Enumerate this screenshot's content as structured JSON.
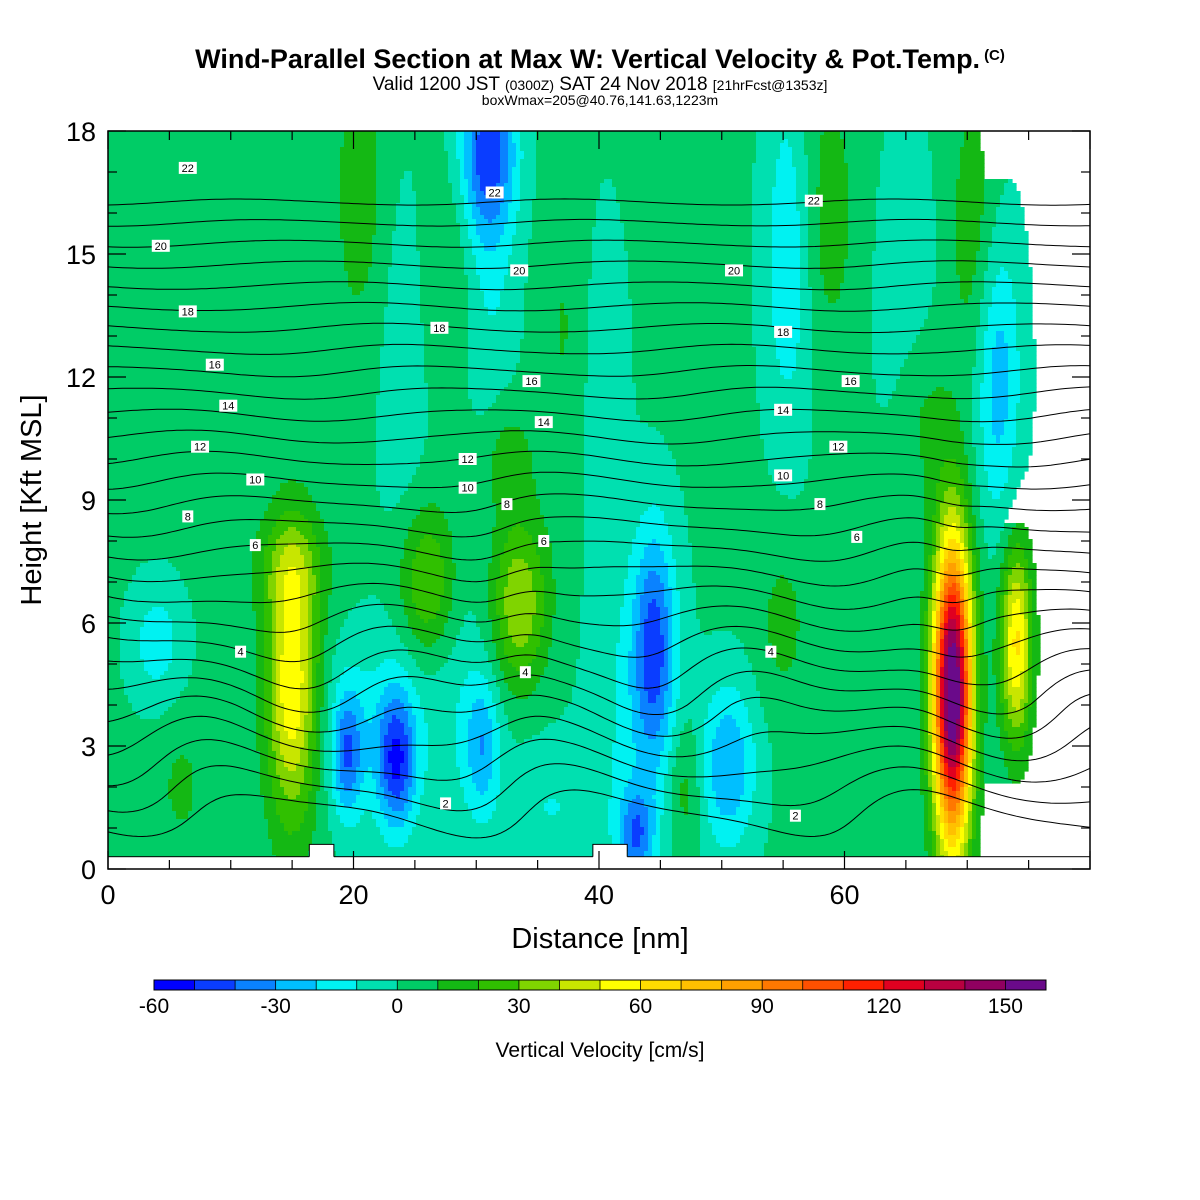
{
  "header": {
    "title": "Wind-Parallel Section at Max W: Vertical Velocity & Pot.Temp.",
    "copyright": "(C)",
    "valid_pre": "Valid 1200 JST",
    "valid_utc": "(0300Z)",
    "valid_date": "SAT 24 Nov 2018",
    "forecast": "[21hrFcst@1353z]",
    "boxwmax": "boxWmax=205@40.76,141.63,1223m"
  },
  "chart_data": {
    "type": "contour",
    "title": "Wind-Parallel Section at Max W: Vertical Velocity & Pot.Temp.",
    "xlabel": "Distance [nm]",
    "ylabel": "Height [Kft MSL]",
    "xlim": [
      0,
      80
    ],
    "ylim": [
      0,
      18
    ],
    "x_ticks": [
      0,
      20,
      40,
      60
    ],
    "y_ticks": [
      0,
      3,
      6,
      9,
      12,
      15,
      18
    ],
    "colorbar": {
      "label": "Vertical Velocity [cm/s]",
      "min": -60,
      "max": 170,
      "step": 10,
      "tick_values": [
        -60,
        -30,
        0,
        30,
        60,
        90,
        120,
        150
      ],
      "colors": [
        "#0000ff",
        "#0a3dff",
        "#0a82ff",
        "#00bfff",
        "#00f2f2",
        "#00e0b0",
        "#00cc66",
        "#14b814",
        "#30c000",
        "#80d400",
        "#c8e600",
        "#ffff00",
        "#ffdc00",
        "#ffc000",
        "#ffa000",
        "#ff7800",
        "#ff5000",
        "#ff2000",
        "#e00020",
        "#b80040",
        "#900060",
        "#6a0a8a"
      ]
    },
    "background_velocity": 2,
    "velocity_features": [
      {
        "x": 15,
        "y": 4.5,
        "sx": 1.5,
        "sy": 2.4,
        "w": 58
      },
      {
        "x": 15,
        "y": 7.4,
        "sx": 2.0,
        "sy": 0.9,
        "w": 20
      },
      {
        "x": 26,
        "y": 7.0,
        "sx": 1.6,
        "sy": 1.3,
        "w": 30
      },
      {
        "x": 33.5,
        "y": 6.5,
        "sx": 1.6,
        "sy": 1.4,
        "w": 38
      },
      {
        "x": 32.5,
        "y": 10.0,
        "sx": 1.5,
        "sy": 1.0,
        "w": 15
      },
      {
        "x": 68.8,
        "y": 4.3,
        "sx": 1.1,
        "sy": 2.6,
        "w": 165
      },
      {
        "x": 74,
        "y": 5.5,
        "sx": 0.9,
        "sy": 1.7,
        "w": 60
      },
      {
        "x": 66.5,
        "y": 11.0,
        "sx": 1.6,
        "sy": 1.5,
        "w": 12
      },
      {
        "x": 70.5,
        "y": 15.5,
        "sx": 1.4,
        "sy": 2.5,
        "w": 15
      },
      {
        "x": 20.5,
        "y": 16.5,
        "sx": 1.5,
        "sy": 2.5,
        "w": 14
      },
      {
        "x": 28,
        "y": 14.5,
        "sx": 1.5,
        "sy": 2.0,
        "w": 10
      },
      {
        "x": 37.5,
        "y": 13.0,
        "sx": 1.5,
        "sy": 3.0,
        "w": 10
      },
      {
        "x": 58.5,
        "y": 16.0,
        "sx": 1.8,
        "sy": 2.5,
        "w": 14
      },
      {
        "x": 47,
        "y": 2.0,
        "sx": 1.0,
        "sy": 1.2,
        "w": 16
      },
      {
        "x": 55,
        "y": 6.0,
        "sx": 1.4,
        "sy": 1.4,
        "w": 12
      },
      {
        "x": 6,
        "y": 2.0,
        "sx": 1.5,
        "sy": 1.2,
        "w": 10
      },
      {
        "x": 23.5,
        "y": 2.6,
        "sx": 1.1,
        "sy": 1.2,
        "w": -45
      },
      {
        "x": 19.5,
        "y": 2.8,
        "sx": 0.9,
        "sy": 1.1,
        "w": -35
      },
      {
        "x": 22,
        "y": 3.5,
        "sx": 3.5,
        "sy": 1.6,
        "w": -14
      },
      {
        "x": 44.5,
        "y": 5.5,
        "sx": 1.2,
        "sy": 2.0,
        "w": -40
      },
      {
        "x": 43,
        "y": 3.5,
        "sx": 2.5,
        "sy": 3.0,
        "w": -14
      },
      {
        "x": 50.5,
        "y": 2.5,
        "sx": 1.6,
        "sy": 1.4,
        "w": -32
      },
      {
        "x": 31,
        "y": 17.5,
        "sx": 1.6,
        "sy": 1.4,
        "w": -42
      },
      {
        "x": 31,
        "y": 15.0,
        "sx": 1.6,
        "sy": 3.0,
        "w": -14
      },
      {
        "x": 55.5,
        "y": 15.0,
        "sx": 1.4,
        "sy": 3.0,
        "w": -22
      },
      {
        "x": 72.5,
        "y": 12.0,
        "sx": 1.3,
        "sy": 2.5,
        "w": -28
      },
      {
        "x": 4,
        "y": 5.5,
        "sx": 1.5,
        "sy": 1.0,
        "w": -18
      },
      {
        "x": 30.5,
        "y": 3.0,
        "sx": 1.0,
        "sy": 1.2,
        "w": -26
      },
      {
        "x": 43,
        "y": 0.8,
        "sx": 1.0,
        "sy": 0.8,
        "w": -35
      },
      {
        "x": 36,
        "y": 1.5,
        "sx": 2.5,
        "sy": 1.2,
        "w": -12
      },
      {
        "x": 29,
        "y": 4.0,
        "sx": 2.0,
        "sy": 2.5,
        "w": -8
      },
      {
        "x": 40,
        "y": 12.0,
        "sx": 1.5,
        "sy": 3.0,
        "w": -10
      },
      {
        "x": 24,
        "y": 12.0,
        "sx": 1.5,
        "sy": 3.5,
        "w": -8
      },
      {
        "x": 65,
        "y": 14.0,
        "sx": 2.0,
        "sy": 3.0,
        "w": -8
      }
    ],
    "theta_contours": {
      "levels": [
        -3,
        -2,
        -1,
        0,
        1,
        2,
        3,
        4,
        5,
        6,
        7,
        8,
        9,
        10,
        11,
        12,
        13,
        14,
        15,
        16,
        17,
        18,
        19,
        20,
        21,
        22,
        23,
        24
      ],
      "label_levels": [
        2,
        4,
        6,
        8,
        10,
        12,
        14,
        16,
        18,
        20,
        22
      ],
      "labels": [
        {
          "text": "22",
          "x": 6.5,
          "y": 17.1
        },
        {
          "text": "22",
          "x": 31.5,
          "y": 16.5
        },
        {
          "text": "22",
          "x": 57.5,
          "y": 16.3
        },
        {
          "text": "20",
          "x": 4.3,
          "y": 15.2
        },
        {
          "text": "20",
          "x": 33.5,
          "y": 14.6
        },
        {
          "text": "20",
          "x": 51,
          "y": 14.6
        },
        {
          "text": "18",
          "x": 6.5,
          "y": 13.6
        },
        {
          "text": "18",
          "x": 27,
          "y": 13.2
        },
        {
          "text": "18",
          "x": 55,
          "y": 13.1
        },
        {
          "text": "16",
          "x": 8.7,
          "y": 12.3
        },
        {
          "text": "16",
          "x": 34.5,
          "y": 11.9
        },
        {
          "text": "16",
          "x": 60.5,
          "y": 11.9
        },
        {
          "text": "14",
          "x": 9.8,
          "y": 11.3
        },
        {
          "text": "14",
          "x": 35.5,
          "y": 10.9
        },
        {
          "text": "14",
          "x": 55,
          "y": 11.2
        },
        {
          "text": "12",
          "x": 7.5,
          "y": 10.3
        },
        {
          "text": "12",
          "x": 29.3,
          "y": 10.0
        },
        {
          "text": "12",
          "x": 59.5,
          "y": 10.3
        },
        {
          "text": "10",
          "x": 12,
          "y": 9.5
        },
        {
          "text": "10",
          "x": 29.3,
          "y": 9.3
        },
        {
          "text": "10",
          "x": 55,
          "y": 9.6
        },
        {
          "text": "8",
          "x": 6.5,
          "y": 8.6
        },
        {
          "text": "8",
          "x": 32.5,
          "y": 8.9
        },
        {
          "text": "8",
          "x": 58,
          "y": 8.9
        },
        {
          "text": "6",
          "x": 12,
          "y": 7.9
        },
        {
          "text": "6",
          "x": 35.5,
          "y": 8.0
        },
        {
          "text": "6",
          "x": 61,
          "y": 8.1
        },
        {
          "text": "4",
          "x": 10.8,
          "y": 5.3
        },
        {
          "text": "4",
          "x": 34,
          "y": 4.8
        },
        {
          "text": "4",
          "x": 54,
          "y": 5.3
        },
        {
          "text": "2",
          "x": 27.5,
          "y": 1.6
        },
        {
          "text": "2",
          "x": 56,
          "y": 1.3
        }
      ]
    },
    "terrain": [
      {
        "x0": 16.4,
        "x1": 18.4,
        "top": 0.6
      },
      {
        "x0": 39.5,
        "x1": 42.3,
        "top": 0.6
      }
    ],
    "grid": false,
    "legend": "bottom-colorbar"
  }
}
